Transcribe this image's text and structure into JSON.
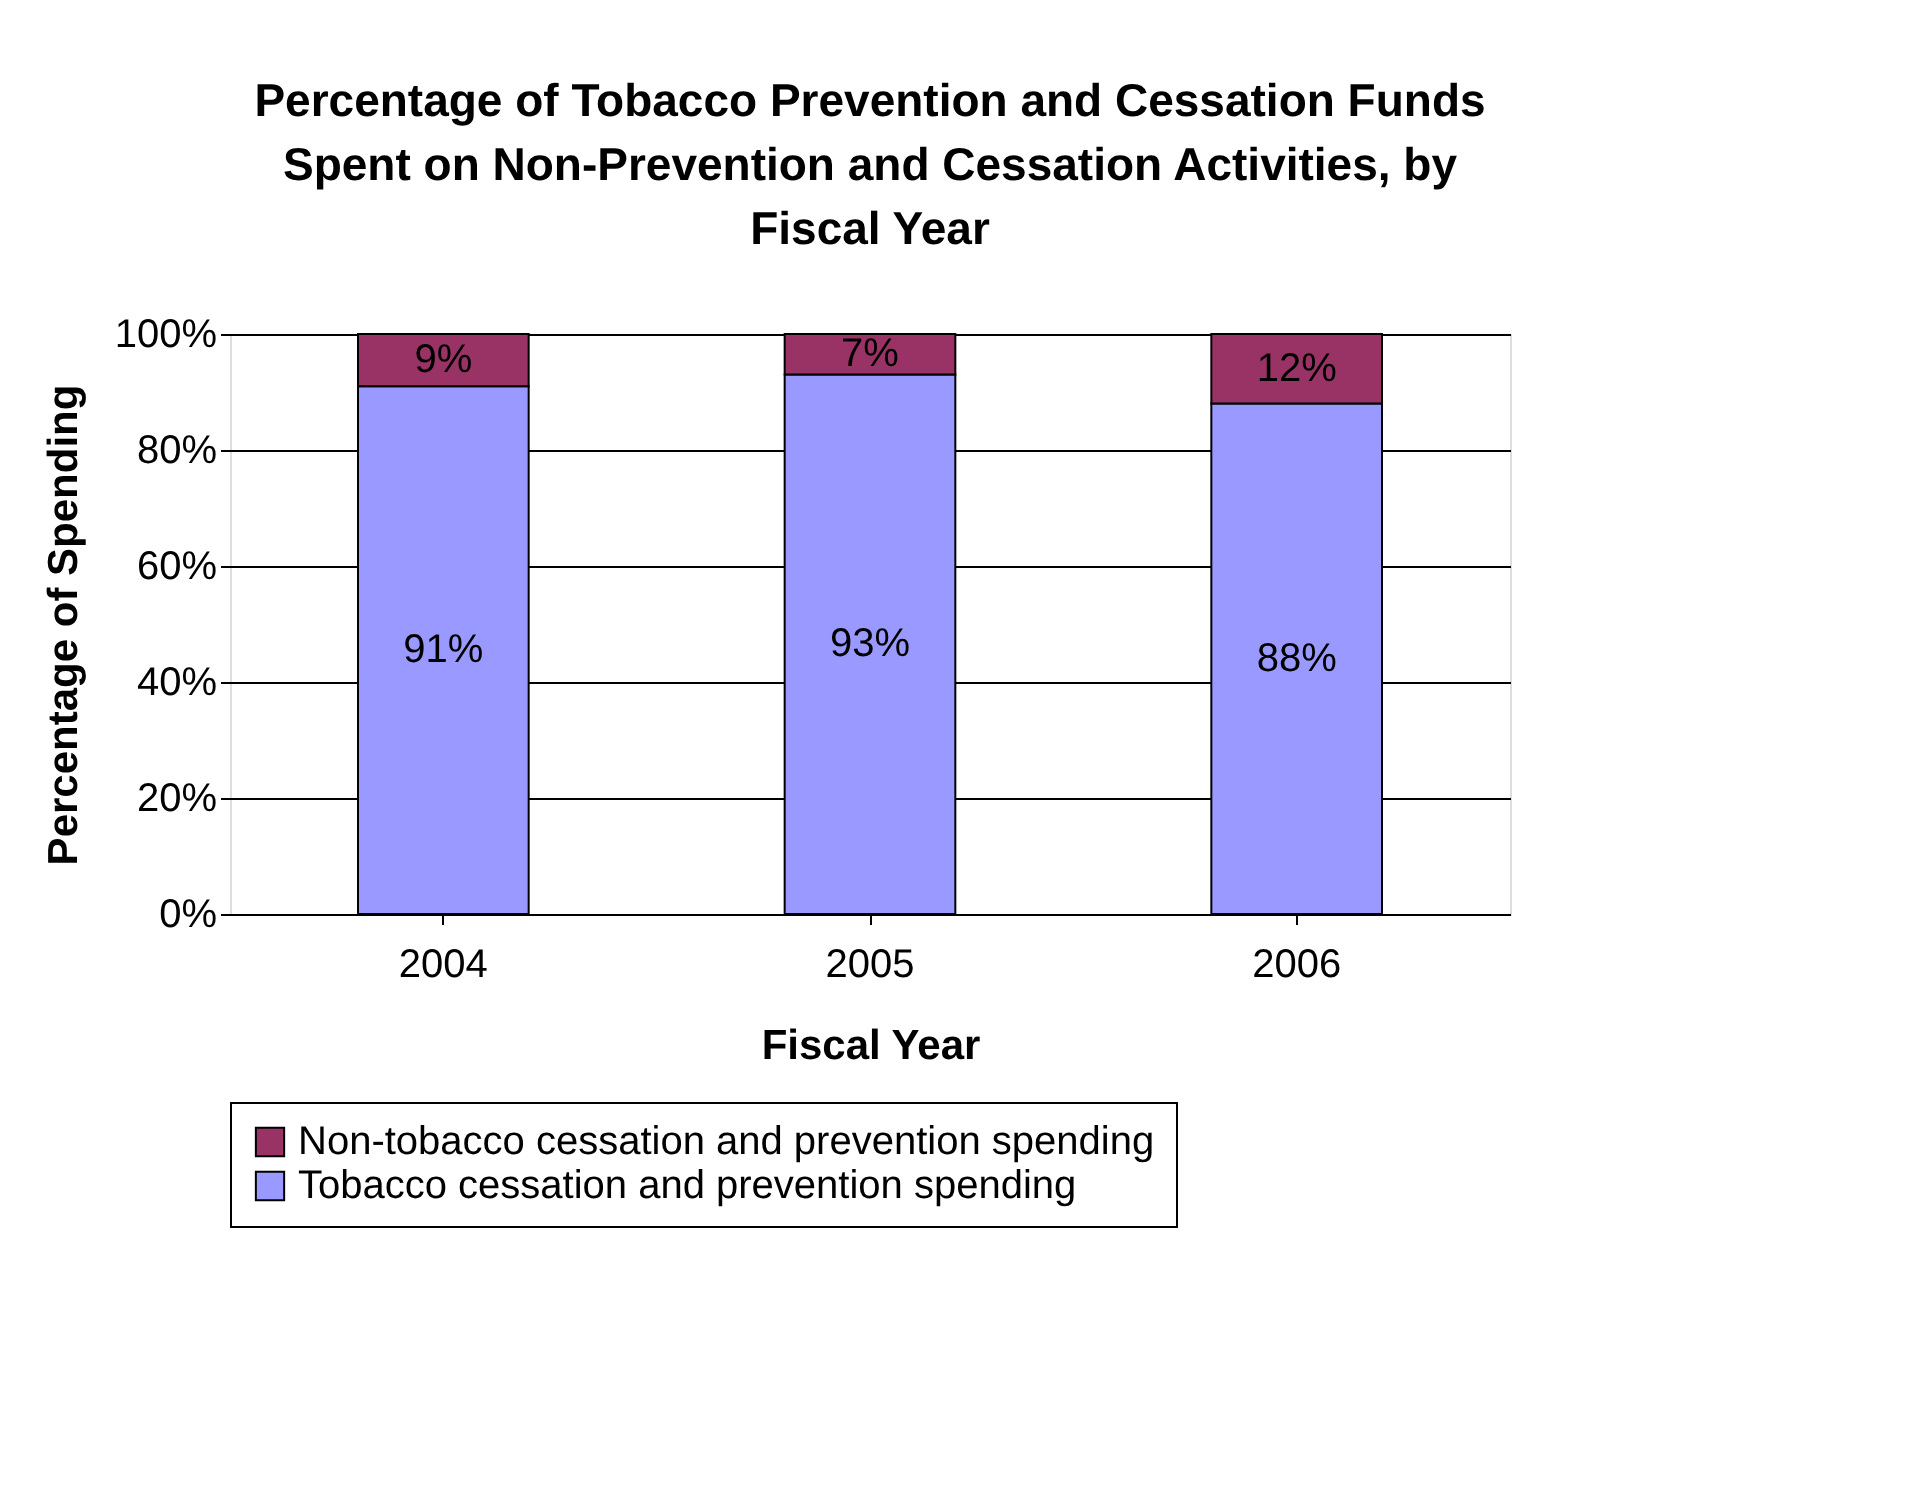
{
  "chart_data": {
    "type": "bar",
    "title": "Percentage of Tobacco Prevention and Cessation Funds Spent on Non-Prevention and Cessation Activities, by Fiscal Year",
    "xlabel": "Fiscal Year",
    "ylabel": "Percentage of Spending",
    "categories": [
      "2004",
      "2005",
      "2006"
    ],
    "series": [
      {
        "name": "Tobacco cessation and prevention spending",
        "color": "#9999ff",
        "values": [
          91,
          93,
          88
        ],
        "value_labels": [
          "91%",
          "93%",
          "88%"
        ]
      },
      {
        "name": "Non-tobacco cessation and prevention spending",
        "color": "#993366",
        "values": [
          9,
          7,
          12
        ],
        "value_labels": [
          "9%",
          "7%",
          "12%"
        ]
      }
    ],
    "stacked": true,
    "ylim": [
      0,
      100
    ],
    "yticks": [
      {
        "value": 0,
        "label": "0%"
      },
      {
        "value": 20,
        "label": "20%"
      },
      {
        "value": 40,
        "label": "40%"
      },
      {
        "value": 60,
        "label": "60%"
      },
      {
        "value": 80,
        "label": "80%"
      },
      {
        "value": 100,
        "label": "100%"
      }
    ],
    "grid": "y",
    "legend": "bottom"
  }
}
